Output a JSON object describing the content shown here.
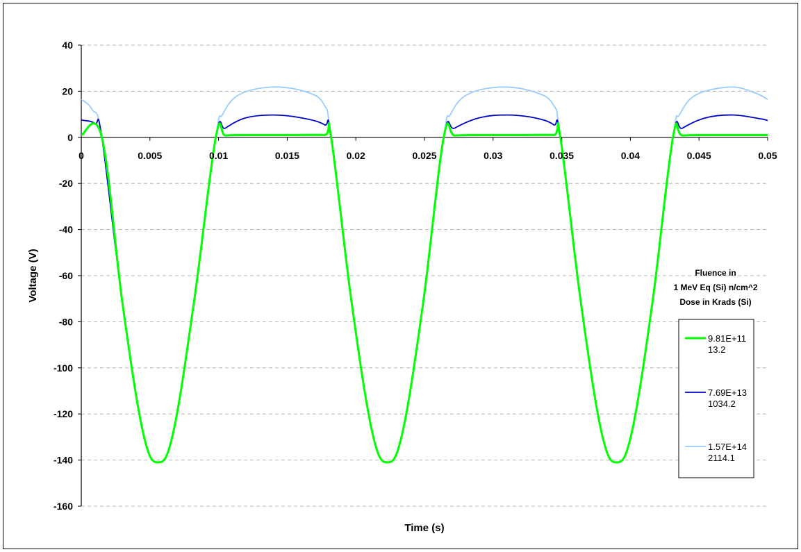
{
  "chart_data": {
    "type": "line",
    "title": "",
    "xlabel": "Time (s)",
    "ylabel": "Voltage (V)",
    "xlim": [
      0,
      0.05
    ],
    "ylim": [
      -160,
      40
    ],
    "x_ticks": [
      "0",
      "0.005",
      "0.01",
      "0.015",
      "0.02",
      "0.025",
      "0.03",
      "0.035",
      "0.04",
      "0.045",
      "0.05"
    ],
    "y_ticks": [
      "40",
      "20",
      "0",
      "-20",
      "-40",
      "-60",
      "-80",
      "-100",
      "-120",
      "-140",
      "-160"
    ],
    "grid": "horizontal dashed",
    "legend": {
      "placement": "right",
      "title_lines": [
        "Fluence in",
        "1 MeV Eq (Si) n/cm^2",
        "Dose in Krads (Si)"
      ],
      "entries": [
        {
          "line1": "9.81E+11",
          "line2": "13.2"
        },
        {
          "line1": "7.69E+13",
          "line2": "1034.2"
        },
        {
          "line1": "1.57E+14",
          "line2": "2114.1"
        }
      ]
    },
    "series": [
      {
        "name": "9.81E+11 13.2",
        "color": "#00ff00",
        "x": [
          0,
          0.0015,
          0.003,
          0.0045,
          0.0056,
          0.0067,
          0.0082,
          0.0098,
          0.0105,
          0.012,
          0.015,
          0.0177,
          0.0182,
          0.0197,
          0.0212,
          0.0223,
          0.0234,
          0.0249,
          0.0264,
          0.0272,
          0.029,
          0.032,
          0.0344,
          0.0349,
          0.0364,
          0.0379,
          0.039,
          0.0401,
          0.0416,
          0.0431,
          0.0438,
          0.046,
          0.05
        ],
        "y": [
          1,
          0,
          -72,
          -128,
          -141,
          -128,
          -72,
          0,
          0.8,
          1,
          1,
          1,
          0,
          -72,
          -128,
          -141,
          -128,
          -72,
          0,
          0.8,
          1,
          1,
          1,
          0,
          -72,
          -128,
          -141,
          -128,
          -72,
          0,
          0.8,
          1,
          1
        ]
      },
      {
        "name": "7.69E+13 1034.2",
        "color": "#0000cc",
        "x": [
          0,
          0.001,
          0.0015,
          0.003,
          0.0045,
          0.0056,
          0.0067,
          0.0082,
          0.0098,
          0.0105,
          0.012,
          0.014,
          0.016,
          0.0177,
          0.0182,
          0.0197,
          0.0212,
          0.0223,
          0.0234,
          0.0249,
          0.0264,
          0.0272,
          0.029,
          0.031,
          0.033,
          0.0344,
          0.0349,
          0.0364,
          0.0379,
          0.039,
          0.0401,
          0.0416,
          0.0431,
          0.0438,
          0.0455,
          0.0475,
          0.0495,
          0.05
        ],
        "y": [
          7.5,
          6,
          0,
          -72,
          -128,
          -141,
          -128,
          -72,
          0,
          4,
          8.5,
          9.7,
          8.5,
          5.5,
          0,
          -72,
          -128,
          -141,
          -128,
          -72,
          0,
          4,
          8.5,
          9.7,
          8.5,
          5.5,
          0,
          -72,
          -128,
          -141,
          -128,
          -72,
          0,
          4,
          8.5,
          9.7,
          8,
          7.3
        ]
      },
      {
        "name": "1.57E+14 2114.1",
        "color": "#99ccff",
        "x": [
          0,
          0.0008,
          0.0015,
          0.003,
          0.0045,
          0.0056,
          0.0067,
          0.0082,
          0.0098,
          0.0103,
          0.0115,
          0.014,
          0.0165,
          0.0177,
          0.0182,
          0.0197,
          0.0212,
          0.0223,
          0.0234,
          0.0249,
          0.0264,
          0.0269,
          0.0281,
          0.0306,
          0.0331,
          0.0344,
          0.0349,
          0.0364,
          0.0379,
          0.039,
          0.0401,
          0.0416,
          0.0431,
          0.0436,
          0.0448,
          0.0473,
          0.049,
          0.05
        ],
        "y": [
          16.5,
          12,
          0,
          -72,
          -128,
          -141,
          -128,
          -72,
          0,
          10,
          18.5,
          21.8,
          19.5,
          14,
          0,
          -72,
          -128,
          -141,
          -128,
          -72,
          0,
          10,
          18.5,
          21.8,
          19.5,
          14,
          0,
          -72,
          -128,
          -141,
          -128,
          -72,
          0,
          10,
          18.5,
          21.8,
          19.5,
          16.5
        ]
      }
    ]
  }
}
